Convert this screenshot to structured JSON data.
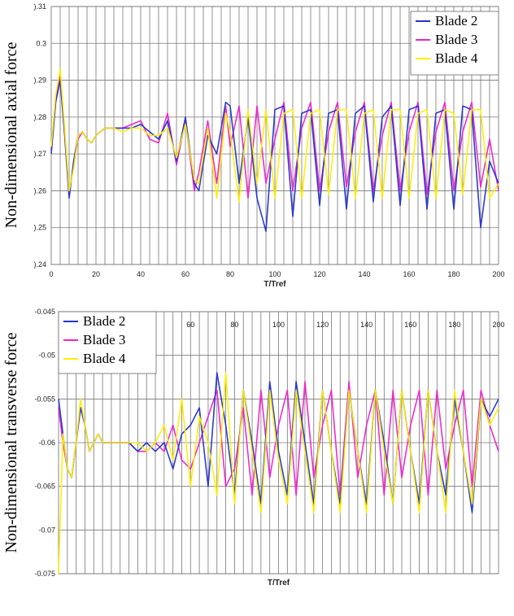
{
  "colors": {
    "blade2": "#2233cc",
    "blade3": "#ee22cc",
    "blade4": "#ffee00"
  },
  "chart_data": [
    {
      "type": "line",
      "xlabel": "T/Tref",
      "ylabel": "Non-dimensional axial force",
      "xlim": [
        0,
        200
      ],
      "ylim": [
        0.24,
        0.31
      ],
      "xticks": [
        "0",
        "20",
        "40",
        "60",
        "80",
        "100",
        "120",
        "140",
        "160",
        "180",
        "200"
      ],
      "yticks": [
        ").24",
        ").25",
        ").26",
        ").27",
        ").28",
        ").29",
        "0.3",
        ").31"
      ],
      "grid": true,
      "legend": "top-right",
      "series": [
        {
          "name": "Blade 2",
          "color_key": "blade2",
          "x": [
            0,
            2,
            4,
            6,
            8,
            10,
            12,
            14,
            16,
            18,
            20,
            24,
            28,
            32,
            36,
            40,
            44,
            48,
            52,
            56,
            60,
            64,
            66,
            70,
            74,
            78,
            80,
            84,
            88,
            92,
            96,
            100,
            104,
            108,
            112,
            116,
            120,
            124,
            128,
            132,
            136,
            140,
            144,
            148,
            152,
            156,
            160,
            164,
            168,
            172,
            176,
            180,
            184,
            188,
            192,
            196,
            200
          ],
          "y": [
            0.27,
            0.284,
            0.29,
            0.275,
            0.258,
            0.268,
            0.275,
            0.276,
            0.274,
            0.273,
            0.275,
            0.277,
            0.277,
            0.277,
            0.277,
            0.278,
            0.276,
            0.274,
            0.279,
            0.268,
            0.28,
            0.262,
            0.26,
            0.275,
            0.27,
            0.284,
            0.283,
            0.262,
            0.28,
            0.258,
            0.249,
            0.282,
            0.283,
            0.253,
            0.281,
            0.282,
            0.256,
            0.281,
            0.282,
            0.255,
            0.281,
            0.283,
            0.257,
            0.28,
            0.283,
            0.256,
            0.282,
            0.283,
            0.255,
            0.281,
            0.282,
            0.255,
            0.283,
            0.282,
            0.25,
            0.268,
            0.262
          ]
        },
        {
          "name": "Blade 3",
          "color_key": "blade3",
          "x": [
            0,
            2,
            4,
            6,
            8,
            10,
            12,
            14,
            16,
            18,
            20,
            24,
            28,
            32,
            36,
            40,
            44,
            48,
            52,
            56,
            60,
            64,
            66,
            70,
            74,
            78,
            80,
            84,
            88,
            92,
            96,
            100,
            104,
            108,
            112,
            116,
            120,
            124,
            128,
            132,
            136,
            140,
            144,
            148,
            152,
            156,
            160,
            164,
            168,
            172,
            176,
            180,
            184,
            188,
            192,
            196,
            200
          ],
          "y": [
            0.271,
            0.285,
            0.291,
            0.276,
            0.259,
            0.267,
            0.274,
            0.276,
            0.274,
            0.273,
            0.275,
            0.277,
            0.277,
            0.277,
            0.278,
            0.279,
            0.274,
            0.273,
            0.281,
            0.267,
            0.279,
            0.26,
            0.265,
            0.279,
            0.262,
            0.283,
            0.272,
            0.283,
            0.258,
            0.283,
            0.262,
            0.274,
            0.284,
            0.26,
            0.277,
            0.284,
            0.26,
            0.276,
            0.284,
            0.261,
            0.276,
            0.284,
            0.26,
            0.275,
            0.284,
            0.26,
            0.276,
            0.284,
            0.259,
            0.276,
            0.284,
            0.26,
            0.276,
            0.284,
            0.261,
            0.274,
            0.26
          ]
        },
        {
          "name": "Blade 4",
          "color_key": "blade4",
          "x": [
            0,
            2,
            4,
            6,
            8,
            10,
            12,
            14,
            16,
            18,
            20,
            24,
            28,
            32,
            36,
            40,
            44,
            48,
            52,
            56,
            60,
            64,
            66,
            70,
            74,
            78,
            80,
            84,
            88,
            92,
            96,
            100,
            104,
            108,
            112,
            116,
            120,
            124,
            128,
            132,
            136,
            140,
            144,
            148,
            152,
            156,
            160,
            164,
            168,
            172,
            176,
            180,
            184,
            188,
            192,
            196,
            200
          ],
          "y": [
            0.272,
            0.286,
            0.293,
            0.277,
            0.26,
            0.266,
            0.275,
            0.276,
            0.274,
            0.273,
            0.275,
            0.277,
            0.277,
            0.276,
            0.277,
            0.277,
            0.275,
            0.275,
            0.277,
            0.269,
            0.278,
            0.263,
            0.262,
            0.277,
            0.258,
            0.281,
            0.276,
            0.257,
            0.282,
            0.262,
            0.282,
            0.258,
            0.281,
            0.282,
            0.258,
            0.281,
            0.282,
            0.259,
            0.282,
            0.282,
            0.258,
            0.281,
            0.282,
            0.258,
            0.282,
            0.282,
            0.258,
            0.281,
            0.282,
            0.258,
            0.282,
            0.281,
            0.259,
            0.282,
            0.282,
            0.258,
            0.262
          ]
        }
      ]
    },
    {
      "type": "line",
      "xlabel": "T/Tref",
      "ylabel": "Non-dimensional transverse force",
      "xlim": [
        0,
        200
      ],
      "ylim": [
        -0.075,
        -0.045
      ],
      "xticks": [
        "60",
        "80",
        "100",
        "120",
        "140",
        "160",
        "180",
        "200"
      ],
      "xtick_values": [
        60,
        80,
        100,
        120,
        140,
        160,
        180,
        200
      ],
      "yticks": [
        "-0.075",
        "-0.07",
        "-0.065",
        "-0.06",
        "-0.055",
        "-0.05",
        "-0.045"
      ],
      "grid": true,
      "legend": "top-left",
      "series": [
        {
          "name": "Blade 2",
          "color_key": "blade2",
          "x": [
            0,
            2,
            4,
            6,
            8,
            10,
            12,
            14,
            16,
            18,
            20,
            24,
            28,
            32,
            36,
            40,
            44,
            48,
            52,
            56,
            60,
            64,
            68,
            72,
            76,
            80,
            84,
            88,
            92,
            96,
            100,
            104,
            108,
            112,
            116,
            120,
            124,
            128,
            132,
            136,
            140,
            144,
            148,
            152,
            156,
            160,
            164,
            168,
            172,
            176,
            180,
            184,
            188,
            192,
            196,
            200
          ],
          "y": [
            -0.055,
            -0.059,
            -0.063,
            -0.064,
            -0.06,
            -0.056,
            -0.058,
            -0.061,
            -0.06,
            -0.059,
            -0.06,
            -0.06,
            -0.06,
            -0.06,
            -0.061,
            -0.06,
            -0.061,
            -0.06,
            -0.063,
            -0.059,
            -0.058,
            -0.056,
            -0.065,
            -0.052,
            -0.058,
            -0.066,
            -0.054,
            -0.06,
            -0.067,
            -0.053,
            -0.061,
            -0.066,
            -0.053,
            -0.06,
            -0.067,
            -0.054,
            -0.061,
            -0.067,
            -0.054,
            -0.061,
            -0.067,
            -0.054,
            -0.06,
            -0.067,
            -0.054,
            -0.061,
            -0.067,
            -0.054,
            -0.061,
            -0.066,
            -0.055,
            -0.061,
            -0.068,
            -0.055,
            -0.057,
            -0.055
          ]
        },
        {
          "name": "Blade 3",
          "color_key": "blade3",
          "x": [
            0,
            2,
            4,
            6,
            8,
            10,
            12,
            14,
            16,
            18,
            20,
            24,
            28,
            32,
            36,
            40,
            44,
            48,
            52,
            56,
            60,
            64,
            68,
            72,
            76,
            80,
            84,
            88,
            92,
            96,
            100,
            104,
            108,
            112,
            116,
            120,
            124,
            128,
            132,
            136,
            140,
            144,
            148,
            152,
            156,
            160,
            164,
            168,
            172,
            176,
            180,
            184,
            188,
            192,
            196,
            200
          ],
          "y": [
            -0.056,
            -0.06,
            -0.063,
            -0.064,
            -0.06,
            -0.056,
            -0.058,
            -0.061,
            -0.06,
            -0.059,
            -0.06,
            -0.06,
            -0.06,
            -0.06,
            -0.061,
            -0.061,
            -0.06,
            -0.061,
            -0.058,
            -0.062,
            -0.063,
            -0.06,
            -0.057,
            -0.054,
            -0.065,
            -0.063,
            -0.056,
            -0.066,
            -0.054,
            -0.064,
            -0.058,
            -0.054,
            -0.066,
            -0.053,
            -0.064,
            -0.058,
            -0.054,
            -0.066,
            -0.053,
            -0.064,
            -0.058,
            -0.054,
            -0.066,
            -0.054,
            -0.064,
            -0.058,
            -0.054,
            -0.066,
            -0.054,
            -0.063,
            -0.058,
            -0.054,
            -0.065,
            -0.054,
            -0.058,
            -0.061
          ]
        },
        {
          "name": "Blade 4",
          "color_key": "blade4",
          "x": [
            0,
            2,
            4,
            6,
            8,
            10,
            12,
            14,
            16,
            18,
            20,
            24,
            28,
            32,
            36,
            40,
            44,
            48,
            52,
            56,
            60,
            64,
            68,
            72,
            76,
            80,
            84,
            88,
            92,
            96,
            100,
            104,
            108,
            112,
            116,
            120,
            124,
            128,
            132,
            136,
            140,
            144,
            148,
            152,
            156,
            160,
            164,
            168,
            172,
            176,
            180,
            184,
            188,
            192,
            196,
            200
          ],
          "y": [
            -0.075,
            -0.059,
            -0.063,
            -0.064,
            -0.06,
            -0.055,
            -0.058,
            -0.061,
            -0.06,
            -0.059,
            -0.06,
            -0.06,
            -0.06,
            -0.06,
            -0.06,
            -0.061,
            -0.06,
            -0.058,
            -0.062,
            -0.055,
            -0.065,
            -0.057,
            -0.06,
            -0.066,
            -0.052,
            -0.067,
            -0.054,
            -0.061,
            -0.068,
            -0.054,
            -0.062,
            -0.067,
            -0.054,
            -0.061,
            -0.068,
            -0.054,
            -0.061,
            -0.068,
            -0.054,
            -0.061,
            -0.068,
            -0.054,
            -0.061,
            -0.067,
            -0.054,
            -0.061,
            -0.068,
            -0.054,
            -0.061,
            -0.068,
            -0.054,
            -0.061,
            -0.067,
            -0.055,
            -0.058,
            -0.056
          ]
        }
      ]
    }
  ]
}
